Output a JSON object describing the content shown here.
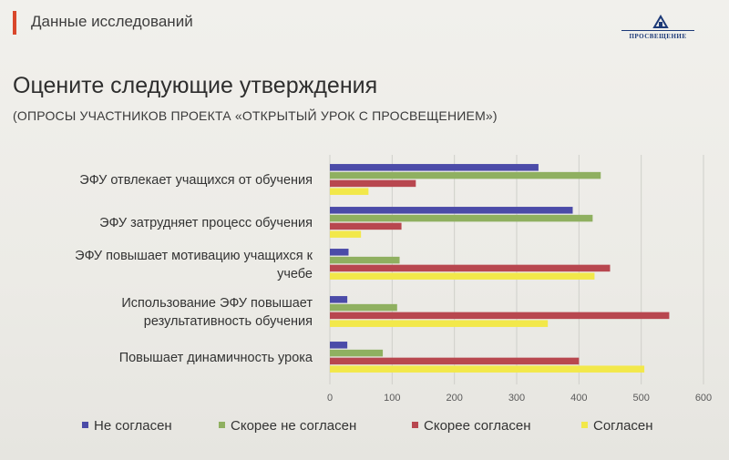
{
  "header": {
    "section_title": "Данные исследований",
    "logo_text": "ПРОСВЕЩЕНИЕ"
  },
  "slide": {
    "title": "Оцените следующие утверждения",
    "subtitle": "(ОПРОСЫ УЧАСТНИКОВ ПРОЕКТА «ОТКРЫТЫЙ УРОК С ПРОСВЕЩЕНИЕМ»)"
  },
  "colors": {
    "accent": "#d9472b",
    "logo": "#1d3a78"
  },
  "chart_data": {
    "type": "bar",
    "orientation": "horizontal",
    "categories": [
      [
        "ЭФУ отвлекает учащихся от обучения"
      ],
      [
        "ЭФУ затрудняет процесс обучения"
      ],
      [
        "ЭФУ повышает мотивацию учащихся к",
        "учебе"
      ],
      [
        "Использование ЭФУ повышает",
        "результативность обучения"
      ],
      [
        "Повышает динамичность урока"
      ]
    ],
    "series": [
      {
        "name": "Не согласен",
        "color": "#4b4ba8",
        "values": [
          335,
          390,
          30,
          28,
          28
        ]
      },
      {
        "name": "Скорее не согласен",
        "color": "#8fb060",
        "values": [
          435,
          422,
          112,
          108,
          85
        ]
      },
      {
        "name": "Скорее согласен",
        "color": "#b8474f",
        "values": [
          138,
          115,
          450,
          545,
          400
        ]
      },
      {
        "name": "Согласен",
        "color": "#f2e84a",
        "values": [
          62,
          50,
          425,
          350,
          505
        ]
      }
    ],
    "xlim": [
      0,
      600
    ],
    "xticks": [
      0,
      100,
      200,
      300,
      400,
      500,
      600
    ],
    "grid": true,
    "legend_position": "bottom"
  }
}
